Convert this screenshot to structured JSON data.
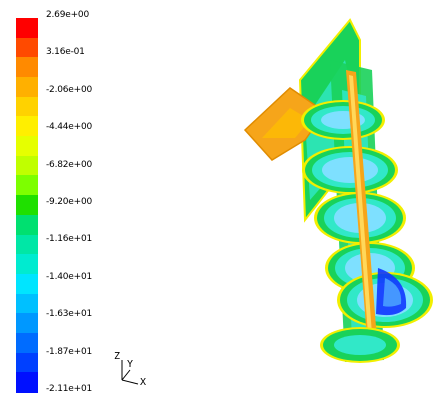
{
  "colorbar": {
    "colors": [
      "#ff0000",
      "#ff4a00",
      "#ff8a00",
      "#ffb000",
      "#ffd200",
      "#ffef00",
      "#e6ff00",
      "#c0ff00",
      "#7dff00",
      "#1fe000",
      "#00e070",
      "#00e7a6",
      "#00ebd0",
      "#00e5ff",
      "#00c0ff",
      "#0098ff",
      "#006cff",
      "#0040ff",
      "#0010ff"
    ],
    "labels": [
      "2.69e+00",
      "3.16e-01",
      "-2.06e+00",
      "-4.44e+00",
      "-6.82e+00",
      "-9.20e+00",
      "-1.16e+01",
      "-1.40e+01",
      "-1.63e+01",
      "-1.87e+01",
      "-2.11e+01"
    ]
  },
  "axes": {
    "z": "Z",
    "y": "Y",
    "x": "X"
  },
  "model": {
    "palette": {
      "slab": "#f6a51a",
      "slab_edge": "#e08c00",
      "ring_outer": "#19d25a",
      "ring_mid": "#31e8c8",
      "ring_inner": "#7ee0ff",
      "core_edge": "#f2ef00",
      "core_mid": "#f6a51a",
      "deep": "#1136ff"
    }
  }
}
